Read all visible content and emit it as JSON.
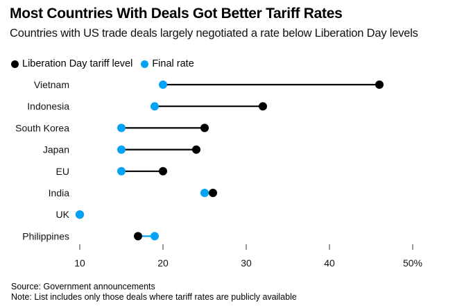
{
  "header": {
    "title": "Most Countries With Deals Got Better Tariff Rates",
    "subtitle": "Countries with US trade deals largely negotiated a rate below Liberation Day levels"
  },
  "footer": {
    "source": "Source: Government announcements",
    "note": "Note: List includes only those deals where tariff rates are publicly available"
  },
  "colors": {
    "liberation_day": "#000000",
    "final_rate": "#00a3f5",
    "line_decrease": "#000000",
    "line_increase": "#00a3f5"
  },
  "chart_data": {
    "type": "scatter",
    "subtype": "dumbbell",
    "title": "Most Countries With Deals Got Better Tariff Rates",
    "subtitle": "Countries with US trade deals largely negotiated a rate below Liberation Day levels",
    "xlabel": "",
    "ylabel": "",
    "xlim": [
      10,
      50
    ],
    "x_ticks": [
      10,
      20,
      30,
      40,
      50
    ],
    "x_tick_labels": [
      "10",
      "20",
      "30",
      "40",
      "50%"
    ],
    "grid": false,
    "legend": {
      "placement": "top-left",
      "entries": [
        {
          "name": "Liberation Day tariff level",
          "color": "#000000"
        },
        {
          "name": "Final rate",
          "color": "#00a3f5"
        }
      ]
    },
    "categories": [
      "Vietnam",
      "Indonesia",
      "South Korea",
      "Japan",
      "EU",
      "India",
      "UK",
      "Philippines"
    ],
    "series": [
      {
        "name": "Liberation Day tariff level",
        "color": "#000000",
        "values": [
          46,
          32,
          25,
          24,
          20,
          26,
          10,
          17
        ]
      },
      {
        "name": "Final rate",
        "color": "#00a3f5",
        "values": [
          20,
          19,
          15,
          15,
          15,
          25,
          10,
          19
        ]
      }
    ]
  }
}
